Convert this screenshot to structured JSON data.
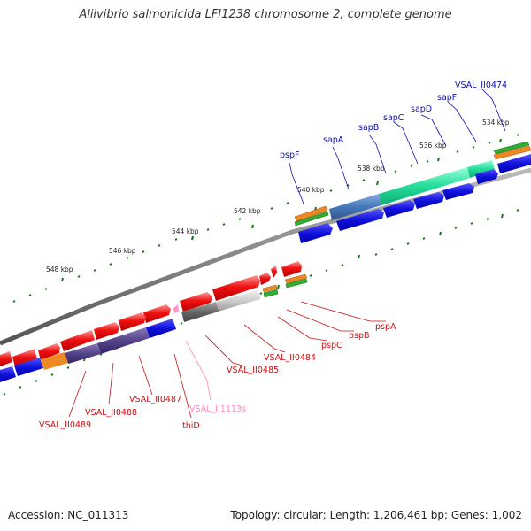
{
  "title": "Aliivibrio salmonicida LFI1238 chromosome 2, complete genome",
  "footer": {
    "accession": "Accession: NC_011313",
    "topology": "Topology: circular; Length: 1,206,461 bp; Genes: 1,002"
  },
  "colors": {
    "red": "#ee1111",
    "blue": "#1111dd",
    "teal": "#22dd99",
    "steel": "#4477bb",
    "purple": "#554488",
    "gray": "#777777",
    "lightgray": "#cccccc",
    "orange": "#ee8822",
    "green": "#33aa33",
    "pink": "#ff99cc",
    "label_red": "#cc1111",
    "label_blue": "#1111aa",
    "label_pink": "#ff88bb",
    "tick": "#117711"
  },
  "map": {
    "ticks": [
      "548 kbp",
      "546 kbp",
      "544 kbp",
      "542 kbp",
      "540 kbp",
      "538 kbp",
      "536 kbp",
      "534 kbp"
    ],
    "genes_top": [
      "pspF",
      "sapA",
      "sapB",
      "sapC",
      "sapD",
      "sapF",
      "VSAL_II0474"
    ],
    "genes_bottom": [
      "pspA",
      "pspB",
      "pspC",
      "VSAL_II0484",
      "VSAL_II0485",
      "VSAL_II1113s",
      "thiD",
      "VSAL_II0487",
      "VSAL_II0488",
      "VSAL_II0489"
    ]
  }
}
